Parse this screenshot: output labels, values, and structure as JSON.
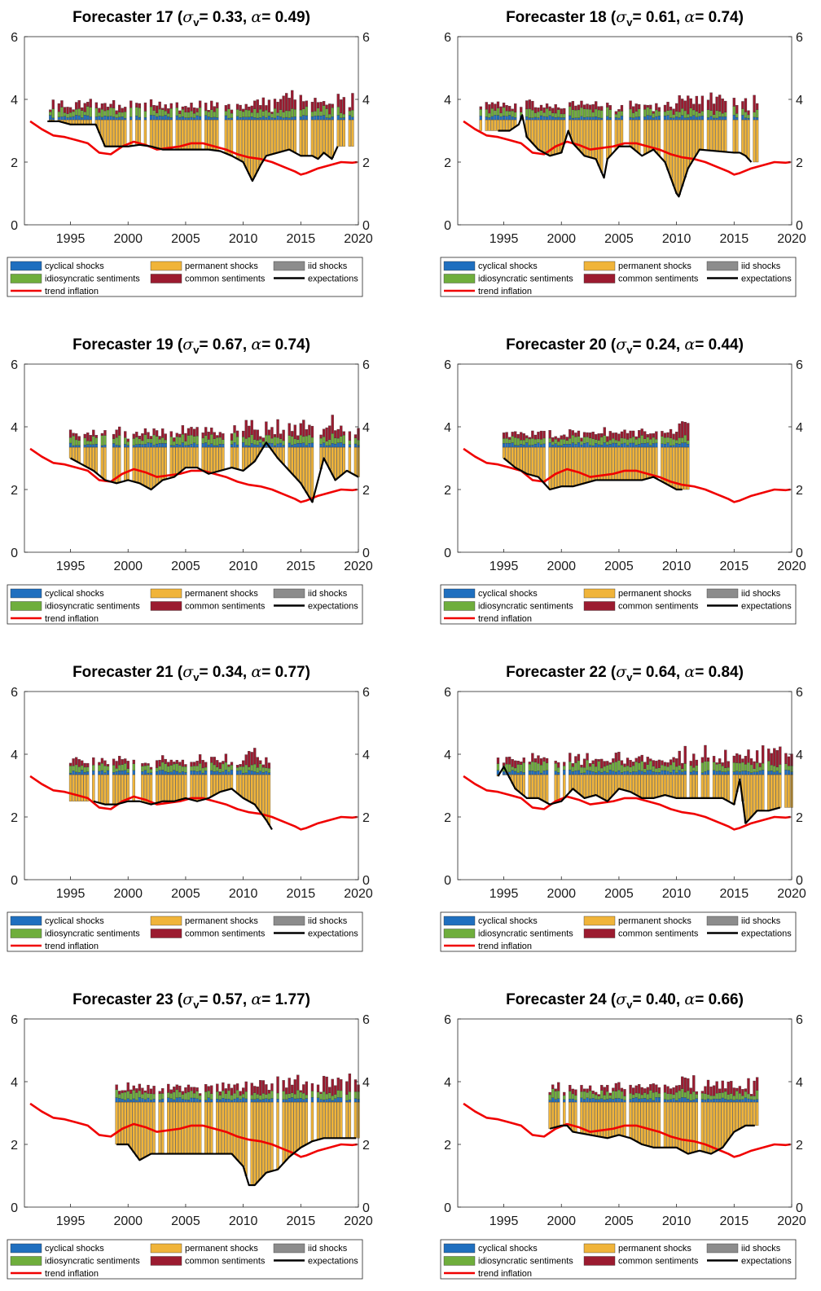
{
  "legend": {
    "cyclical": "cyclical shocks",
    "permanent": "permanent shocks",
    "iid": "iid shocks",
    "idio": "idiosyncratic sentiments",
    "common": "common sentiments",
    "expectations": "expectations",
    "trend": "trend inflation"
  },
  "colors": {
    "cyclical": "#1f6fbf",
    "permanent": "#f0b43a",
    "iid": "#8c8c8c",
    "idio": "#6fae3c",
    "common": "#9b1b30",
    "expectations": "#000000",
    "trend": "#f00000"
  },
  "trend_inflation": {
    "x": [
      1991.5,
      1992.5,
      1993.5,
      1994.5,
      1995.5,
      1996.5,
      1997.5,
      1998.5,
      1999.5,
      2000.5,
      2001.5,
      2002.5,
      2003.5,
      2004.5,
      2005.5,
      2006.5,
      2007.5,
      2008.5,
      2009.5,
      2010.5,
      2011.5,
      2012.5,
      2013.5,
      2014.5,
      2015,
      2015.5,
      2016.5,
      2017.5,
      2018.5,
      2019.5,
      2019.9
    ],
    "y": [
      3.3,
      3.05,
      2.85,
      2.8,
      2.7,
      2.6,
      2.3,
      2.25,
      2.5,
      2.65,
      2.55,
      2.4,
      2.45,
      2.5,
      2.6,
      2.6,
      2.5,
      2.4,
      2.25,
      2.15,
      2.1,
      2.0,
      1.85,
      1.7,
      1.6,
      1.65,
      1.8,
      1.9,
      2.0,
      1.98,
      2.0
    ]
  },
  "chart_data": [
    {
      "type": "bar",
      "title_prefix": "Forecaster 17 (",
      "sigma_value": "= 0.33, ",
      "alpha_value": "= 0.49)",
      "xlim": [
        1991,
        2020
      ],
      "ylim": [
        0,
        6
      ],
      "xticks": [
        1995,
        2000,
        2005,
        2010,
        2015,
        2020
      ],
      "yticks": [
        0,
        2,
        4,
        6
      ],
      "bars_x": [
        1993,
        2020
      ],
      "base": 3.35,
      "avg_top": 3.65,
      "expectations": {
        "x": [
          1993,
          1994,
          1995,
          1996,
          1997.2,
          1998,
          1999,
          2000,
          2001,
          2002,
          2003,
          2004,
          2005,
          2006,
          2007,
          2008,
          2009,
          2010,
          2010.8,
          2011.5,
          2012,
          2013,
          2014,
          2015,
          2016,
          2016.5,
          2017,
          2017.7,
          2018.2
        ],
        "y": [
          3.3,
          3.3,
          3.2,
          3.2,
          3.2,
          2.5,
          2.5,
          2.5,
          2.55,
          2.5,
          2.4,
          2.4,
          2.4,
          2.4,
          2.4,
          2.35,
          2.2,
          2.0,
          1.4,
          1.9,
          2.2,
          2.3,
          2.4,
          2.2,
          2.2,
          2.1,
          2.3,
          2.1,
          2.5
        ]
      }
    },
    {
      "type": "bar",
      "title_prefix": "Forecaster 18 (",
      "sigma_value": "= 0.61, ",
      "alpha_value": "= 0.74)",
      "xlim": [
        1991,
        2020
      ],
      "ylim": [
        0,
        6
      ],
      "xticks": [
        1995,
        2000,
        2005,
        2010,
        2015,
        2020
      ],
      "yticks": [
        0,
        2,
        4,
        6
      ],
      "bars_x": [
        1993,
        2017
      ],
      "base": 3.35,
      "avg_top": 3.6,
      "expectations": {
        "x": [
          1994.5,
          1995.5,
          1996.3,
          1996.6,
          1997,
          1998,
          1999,
          2000,
          2000.6,
          2001,
          2002,
          2003,
          2003.7,
          2004,
          2005,
          2006,
          2007,
          2008,
          2009,
          2010,
          2010.2,
          2011,
          2012,
          2015,
          2015.5,
          2016,
          2016.5
        ],
        "y": [
          3.0,
          3.0,
          3.2,
          3.5,
          2.8,
          2.4,
          2.2,
          2.3,
          3.0,
          2.6,
          2.2,
          2.1,
          1.5,
          2.1,
          2.5,
          2.5,
          2.2,
          2.4,
          2.0,
          1.0,
          0.9,
          1.8,
          2.4,
          2.3,
          2.3,
          2.2,
          2.0
        ]
      }
    },
    {
      "type": "bar",
      "title_prefix": "Forecaster 19 (",
      "sigma_value": "= 0.67, ",
      "alpha_value": "= 0.74)",
      "xlim": [
        1991,
        2020
      ],
      "ylim": [
        0,
        6
      ],
      "xticks": [
        1995,
        2000,
        2005,
        2010,
        2015,
        2020
      ],
      "yticks": [
        0,
        2,
        4,
        6
      ],
      "bars_x": [
        1995,
        2020
      ],
      "base": 3.35,
      "avg_top": 3.7,
      "expectations": {
        "x": [
          1995,
          1996,
          1997,
          1998,
          1999,
          2000,
          2001,
          2002,
          2003,
          2004,
          2005,
          2006,
          2007,
          2008,
          2009,
          2010,
          2011,
          2012,
          2013,
          2014,
          2015,
          2016,
          2017,
          2018,
          2019,
          2020
        ],
        "y": [
          3.0,
          2.8,
          2.6,
          2.3,
          2.2,
          2.3,
          2.2,
          2.0,
          2.3,
          2.4,
          2.7,
          2.7,
          2.5,
          2.6,
          2.7,
          2.6,
          2.9,
          3.5,
          3.0,
          2.6,
          2.2,
          1.6,
          3.0,
          2.3,
          2.6,
          2.4
        ]
      }
    },
    {
      "type": "bar",
      "title_prefix": "Forecaster 20 (",
      "sigma_value": "= 0.24, ",
      "alpha_value": "= 0.44)",
      "xlim": [
        1991,
        2020
      ],
      "ylim": [
        0,
        6
      ],
      "xticks": [
        1995,
        2000,
        2005,
        2010,
        2015,
        2020
      ],
      "yticks": [
        0,
        2,
        4,
        6
      ],
      "bars_x": [
        1995,
        2011.5
      ],
      "base": 3.35,
      "avg_top": 3.5,
      "expectations": {
        "x": [
          1995,
          1996,
          1997,
          1998,
          1999,
          2000,
          2001,
          2002,
          2003,
          2004,
          2005,
          2006,
          2007,
          2008,
          2009,
          2010,
          2010.5
        ],
        "y": [
          3.0,
          2.7,
          2.5,
          2.4,
          2.0,
          2.1,
          2.1,
          2.2,
          2.3,
          2.3,
          2.3,
          2.3,
          2.3,
          2.4,
          2.2,
          2.0,
          2.0
        ]
      }
    },
    {
      "type": "bar",
      "title_prefix": "Forecaster 21 (",
      "sigma_value": "= 0.34, ",
      "alpha_value": "= 0.77)",
      "xlim": [
        1991,
        2020
      ],
      "ylim": [
        0,
        6
      ],
      "xticks": [
        1995,
        2000,
        2005,
        2010,
        2015,
        2020
      ],
      "yticks": [
        0,
        2,
        4,
        6
      ],
      "bars_x": [
        1995,
        2012.5
      ],
      "base": 3.35,
      "avg_top": 3.5,
      "expectations": {
        "x": [
          1997,
          1998,
          1999,
          2000,
          2001,
          2002,
          2003,
          2004,
          2005,
          2006,
          2007,
          2008,
          2009,
          2010,
          2011,
          2012,
          2012.5
        ],
        "y": [
          2.5,
          2.4,
          2.4,
          2.5,
          2.5,
          2.4,
          2.5,
          2.5,
          2.6,
          2.5,
          2.6,
          2.8,
          2.9,
          2.6,
          2.4,
          1.9,
          1.6
        ]
      }
    },
    {
      "type": "bar",
      "title_prefix": "Forecaster 22 (",
      "sigma_value": "= 0.64, ",
      "alpha_value": "= 0.84)",
      "xlim": [
        1991,
        2020
      ],
      "ylim": [
        0,
        6
      ],
      "xticks": [
        1995,
        2000,
        2005,
        2010,
        2015,
        2020
      ],
      "yticks": [
        0,
        2,
        4,
        6
      ],
      "bars_x": [
        1994.5,
        2020
      ],
      "base": 3.35,
      "avg_top": 3.7,
      "expectations": {
        "x": [
          1994.5,
          1995,
          1996,
          1997,
          1998,
          1999,
          2000,
          2001,
          2002,
          2003,
          2004,
          2005,
          2006,
          2007,
          2008,
          2009,
          2010,
          2011,
          2012,
          2013,
          2014,
          2015,
          2015.5,
          2016,
          2017,
          2018,
          2019
        ],
        "y": [
          3.3,
          3.6,
          2.9,
          2.6,
          2.6,
          2.4,
          2.5,
          2.9,
          2.6,
          2.7,
          2.5,
          2.9,
          2.8,
          2.6,
          2.6,
          2.7,
          2.6,
          2.6,
          2.6,
          2.6,
          2.6,
          2.4,
          3.2,
          1.8,
          2.2,
          2.2,
          2.3
        ]
      }
    },
    {
      "type": "bar",
      "title_prefix": "Forecaster 23 (",
      "sigma_value": "= 0.57, ",
      "alpha_value": "= 1.77)",
      "xlim": [
        1991,
        2020
      ],
      "ylim": [
        0,
        6
      ],
      "xticks": [
        1995,
        2000,
        2005,
        2010,
        2015,
        2020
      ],
      "yticks": [
        0,
        2,
        4,
        6
      ],
      "bars_x": [
        1999,
        2020
      ],
      "base": 3.35,
      "avg_top": 3.55,
      "expectations": {
        "x": [
          1999,
          2000,
          2001,
          2002,
          2003,
          2004,
          2005,
          2006,
          2007,
          2008,
          2009,
          2010,
          2010.5,
          2011,
          2012,
          2013,
          2014,
          2015,
          2016,
          2017,
          2018,
          2019,
          2019.8
        ],
        "y": [
          2.0,
          2.0,
          1.5,
          1.7,
          1.7,
          1.7,
          1.7,
          1.7,
          1.7,
          1.7,
          1.7,
          1.3,
          0.7,
          0.7,
          1.1,
          1.2,
          1.6,
          1.9,
          2.1,
          2.2,
          2.2,
          2.2,
          2.2
        ]
      }
    },
    {
      "type": "bar",
      "title_prefix": "Forecaster 24 (",
      "sigma_value": "= 0.40, ",
      "alpha_value": "= 0.66)",
      "xlim": [
        1991,
        2020
      ],
      "ylim": [
        0,
        6
      ],
      "xticks": [
        1995,
        2000,
        2005,
        2010,
        2015,
        2020
      ],
      "yticks": [
        0,
        2,
        4,
        6
      ],
      "bars_x": [
        1999,
        2017
      ],
      "base": 3.35,
      "avg_top": 3.6,
      "expectations": {
        "x": [
          1999,
          2000,
          2000.5,
          2001,
          2004,
          2005,
          2006,
          2007,
          2008,
          2009,
          2010,
          2011,
          2012,
          2013,
          2014,
          2015,
          2016,
          2016.8
        ],
        "y": [
          2.5,
          2.6,
          2.6,
          2.4,
          2.2,
          2.3,
          2.2,
          2.0,
          1.9,
          1.9,
          1.9,
          1.7,
          1.8,
          1.7,
          1.9,
          2.4,
          2.6,
          2.6
        ]
      }
    }
  ]
}
